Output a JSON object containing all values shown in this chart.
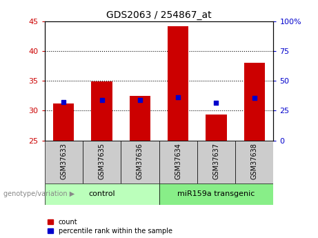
{
  "title": "GDS2063 / 254867_at",
  "samples": [
    "GSM37633",
    "GSM37635",
    "GSM37636",
    "GSM37634",
    "GSM37637",
    "GSM37638"
  ],
  "bar_base": 25,
  "bar_tops": [
    31.2,
    34.9,
    32.5,
    44.2,
    29.4,
    38.0
  ],
  "percentile_values": [
    31.4,
    31.8,
    31.8,
    32.3,
    31.3,
    32.1
  ],
  "bar_color": "#cc0000",
  "percentile_color": "#0000cc",
  "ylim_left": [
    25,
    45
  ],
  "ylim_right": [
    0,
    100
  ],
  "yticks_left": [
    25,
    30,
    35,
    40,
    45
  ],
  "yticks_right": [
    0,
    25,
    50,
    75,
    100
  ],
  "ytick_labels_right": [
    "0",
    "25",
    "50",
    "75",
    "100%"
  ],
  "groups": [
    {
      "label": "control",
      "spans": [
        0,
        3
      ],
      "color": "#bbffbb"
    },
    {
      "label": "miR159a transgenic",
      "spans": [
        3,
        6
      ],
      "color": "#88ee88"
    }
  ],
  "group_label_prefix": "genotype/variation",
  "legend_items": [
    {
      "label": "count",
      "color": "#cc0000"
    },
    {
      "label": "percentile rank within the sample",
      "color": "#0000cc"
    }
  ],
  "bar_width": 0.55,
  "tick_label_color_left": "#cc0000",
  "tick_label_color_right": "#0000cc",
  "bg_color": "#ffffff",
  "plot_bg": "#ffffff",
  "sample_bg": "#cccccc",
  "grid_yticks": [
    30,
    35,
    40
  ]
}
